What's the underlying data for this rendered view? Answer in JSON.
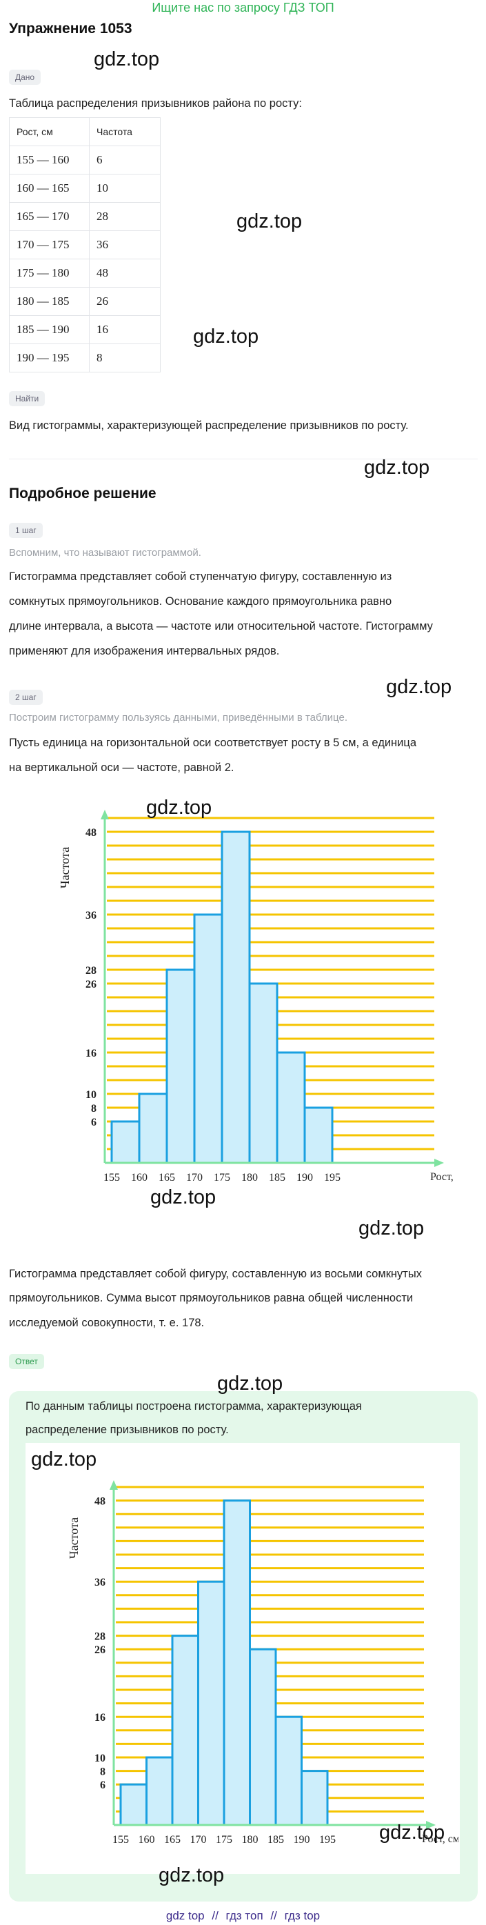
{
  "banner": "Ищите нас по запросу ГДЗ ТОП",
  "title": "Упражнение 1053",
  "watermark": "gdz.top",
  "given": {
    "badge": "Дано",
    "intro": "Таблица распределения призывников района по росту:",
    "table": {
      "headers": [
        "Рост, см",
        "Частота"
      ],
      "rows": [
        [
          "155  —  160",
          "6"
        ],
        [
          "160  —  165",
          "10"
        ],
        [
          "165  —  170",
          "28"
        ],
        [
          "170  —  175",
          "36"
        ],
        [
          "175  —  180",
          "48"
        ],
        [
          "180  —  185",
          "26"
        ],
        [
          "185  —  190",
          "16"
        ],
        [
          "190  —  195",
          "8"
        ]
      ]
    }
  },
  "find": {
    "badge": "Найти",
    "text": "Вид гистограммы, характеризующей распределение призывников по росту."
  },
  "solution": {
    "heading": "Подробное решение",
    "step1": {
      "badge": "1 шаг",
      "hint": "Вспомним, что называют гистограммой.",
      "lines": [
        "Гистограмма представляет собой ступенчатую фигуру, составленную из",
        "сомкнутых прямоугольников. Основание каждого прямоугольника равно",
        "длине интервала, а высота — частоте или относительной частоте. Гистограмму",
        "применяют для изображения интервальных рядов."
      ]
    },
    "step2": {
      "badge": "2 шаг",
      "hint": "Построим гистограмму пользуясь данными, приведёнными в таблице.",
      "line1": "Пусть единица на горизонтальной оси соответствует росту в 5 см, а единица",
      "line2": "на вертикальной оси — частоте, равной 2."
    },
    "conclusion": {
      "line1": "Гистограмма представляет собой фигуру, составленную из восьми сомкнутых",
      "line2": "прямоугольников. Сумма высот прямоугольников равна общей численности",
      "line3": "исследуемой совокупности, т. е. 178."
    }
  },
  "answer": {
    "badge": "Ответ",
    "line1": "По данным таблицы построена гистограмма, характеризующая",
    "line2": "распределение призывников по росту."
  },
  "chart_data": [
    {
      "type": "bar",
      "ylabel": "Частота",
      "xlabel": "Рост, см",
      "x_ticks": [
        155,
        160,
        165,
        170,
        175,
        180,
        185,
        190,
        195
      ],
      "y_ticks": [
        6,
        8,
        10,
        16,
        26,
        28,
        36,
        48
      ],
      "bins": [
        [
          155,
          160
        ],
        [
          160,
          165
        ],
        [
          165,
          170
        ],
        [
          170,
          175
        ],
        [
          175,
          180
        ],
        [
          180,
          185
        ],
        [
          185,
          190
        ],
        [
          190,
          195
        ]
      ],
      "values": [
        6,
        10,
        28,
        36,
        48,
        26,
        16,
        8
      ],
      "ylim": [
        0,
        50
      ],
      "grid": true,
      "colors": {
        "bar_fill": "#cdeefb",
        "bar_stroke": "#1aa0e0",
        "grid": "#f5c400",
        "axis": "#7fe3a0"
      }
    },
    {
      "type": "bar",
      "ylabel": "Частота",
      "xlabel": "Рост, см",
      "x_ticks": [
        155,
        160,
        165,
        170,
        175,
        180,
        185,
        190,
        195
      ],
      "y_ticks": [
        6,
        8,
        10,
        16,
        26,
        28,
        36,
        48
      ],
      "bins": [
        [
          155,
          160
        ],
        [
          160,
          165
        ],
        [
          165,
          170
        ],
        [
          170,
          175
        ],
        [
          175,
          180
        ],
        [
          180,
          185
        ],
        [
          185,
          190
        ],
        [
          190,
          195
        ]
      ],
      "values": [
        6,
        10,
        28,
        36,
        48,
        26,
        16,
        8
      ],
      "ylim": [
        0,
        50
      ],
      "grid": true,
      "colors": {
        "bar_fill": "#cdeefb",
        "bar_stroke": "#1aa0e0",
        "grid": "#f5c400",
        "axis": "#7fe3a0"
      }
    }
  ],
  "footer": [
    "gdz top",
    "//",
    "гдз топ",
    "//",
    "гдз top"
  ]
}
